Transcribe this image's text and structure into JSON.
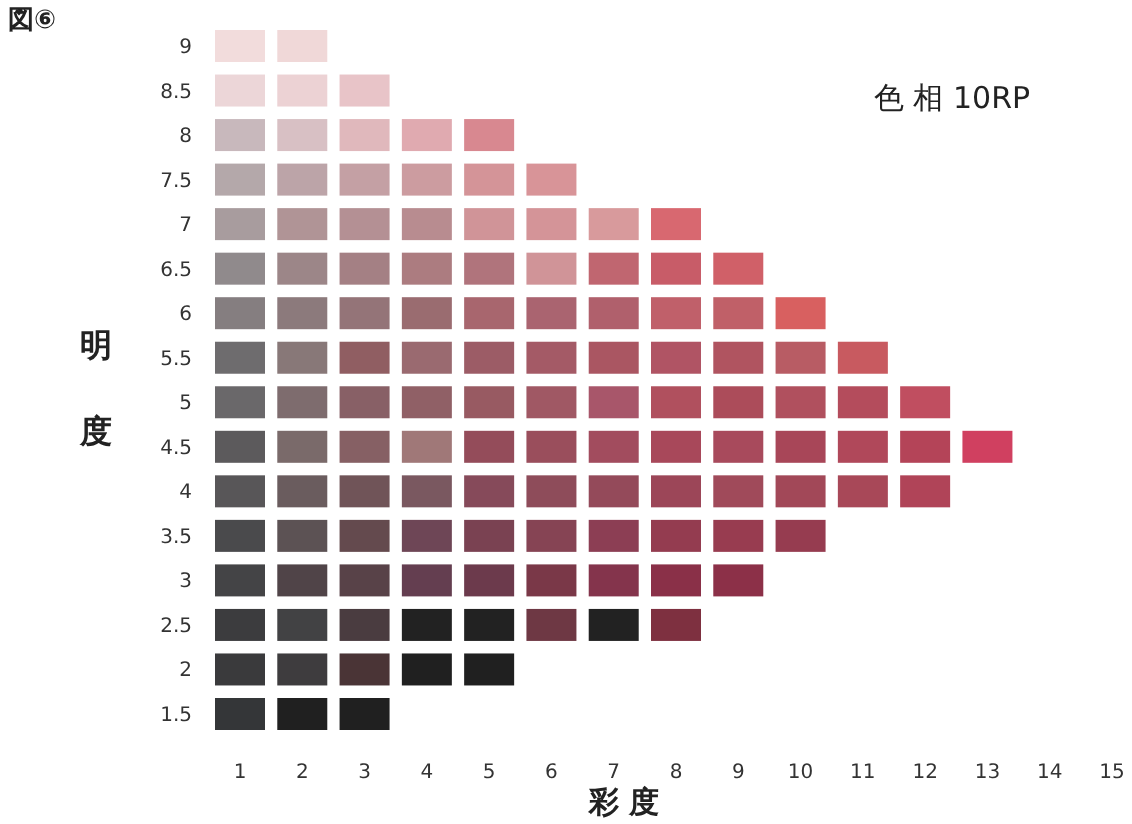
{
  "chart_data": {
    "type": "scatter",
    "title": "図⑥",
    "xlabel": "彩 度",
    "ylabel": "明度",
    "annotations": [
      "色 相 10RP"
    ],
    "marker": "square",
    "grid": false,
    "xlim": [
      1,
      15
    ],
    "ylim": [
      1.5,
      9
    ],
    "xticks": [
      1,
      2,
      3,
      4,
      5,
      6,
      7,
      8,
      9,
      10,
      11,
      12,
      13,
      14,
      15
    ],
    "yticks": [
      1.5,
      2,
      2.5,
      3,
      3.5,
      4,
      4.5,
      5,
      5.5,
      6,
      6.5,
      7,
      7.5,
      8,
      8.5,
      9
    ],
    "x": [
      1,
      2,
      1,
      2,
      3,
      1,
      2,
      3,
      4,
      5,
      1,
      2,
      3,
      4,
      5,
      6,
      1,
      2,
      3,
      4,
      5,
      6,
      7,
      8,
      1,
      2,
      3,
      4,
      5,
      6,
      7,
      8,
      9,
      1,
      2,
      3,
      4,
      5,
      6,
      7,
      8,
      9,
      10,
      1,
      2,
      3,
      4,
      5,
      6,
      7,
      8,
      9,
      10,
      11,
      1,
      2,
      3,
      4,
      5,
      6,
      7,
      8,
      9,
      10,
      11,
      12,
      1,
      2,
      3,
      4,
      5,
      6,
      7,
      8,
      9,
      10,
      11,
      12,
      13,
      1,
      2,
      3,
      4,
      5,
      6,
      7,
      8,
      9,
      10,
      11,
      12,
      1,
      2,
      3,
      4,
      5,
      6,
      7,
      8,
      9,
      10,
      1,
      2,
      3,
      4,
      5,
      6,
      7,
      8,
      9,
      1,
      2,
      3,
      4,
      5,
      6,
      7,
      8,
      1,
      2,
      3,
      4,
      5,
      1,
      2,
      3
    ],
    "values": [
      9,
      9,
      8.5,
      8.5,
      8.5,
      8,
      8,
      8,
      8,
      8,
      7.5,
      7.5,
      7.5,
      7.5,
      7.5,
      7.5,
      7,
      7,
      7,
      7,
      7,
      7,
      7,
      7,
      6.5,
      6.5,
      6.5,
      6.5,
      6.5,
      6.5,
      6.5,
      6.5,
      6.5,
      6,
      6,
      6,
      6,
      6,
      6,
      6,
      6,
      6,
      6,
      5.5,
      5.5,
      5.5,
      5.5,
      5.5,
      5.5,
      5.5,
      5.5,
      5.5,
      5.5,
      5.5,
      5,
      5,
      5,
      5,
      5,
      5,
      5,
      5,
      5,
      5,
      5,
      5,
      4.5,
      4.5,
      4.5,
      4.5,
      4.5,
      4.5,
      4.5,
      4.5,
      4.5,
      4.5,
      4.5,
      4.5,
      4.5,
      4,
      4,
      4,
      4,
      4,
      4,
      4,
      4,
      4,
      4,
      4,
      4,
      3.5,
      3.5,
      3.5,
      3.5,
      3.5,
      3.5,
      3.5,
      3.5,
      3.5,
      3.5,
      3,
      3,
      3,
      3,
      3,
      3,
      3,
      3,
      3,
      2.5,
      2.5,
      2.5,
      2.5,
      2.5,
      2.5,
      2.5,
      2.5,
      2,
      2,
      2,
      2,
      2,
      1.5,
      1.5,
      1.5
    ],
    "colors": [
      "#f2dcdc",
      "#f0d8d8",
      "#ecd6d8",
      "#ecd2d4",
      "#e8c4c8",
      "#c8b8bc",
      "#d8c0c4",
      "#e0b8bc",
      "#e0aab0",
      "#d88890",
      "#b4a8aa",
      "#bca4a8",
      "#c4a0a4",
      "#cc9ca0",
      "#d49498",
      "#d89498",
      "#a89c9e",
      "#b09496",
      "#b49094",
      "#b88c90",
      "#d09498",
      "#d49498",
      "#d89a9c",
      "#d86870",
      "#908a8c",
      "#9c8688",
      "#a48084",
      "#ac7c80",
      "#b0747c",
      "#d09498",
      "#c06670",
      "#c85c68",
      "#d06068",
      "#857e80",
      "#8c7a7c",
      "#947478",
      "#9a6c70",
      "#a8666e",
      "#aa6470",
      "#b0606c",
      "#c0606a",
      "#c06068",
      "#d86060",
      "#6e6c6e",
      "#887878",
      "#905e62",
      "#9a6a70",
      "#9c5c66",
      "#a45a66",
      "#aa5662",
      "#b05464",
      "#b05460",
      "#b85c64",
      "#c85a60",
      "#6a686a",
      "#7e6c6e",
      "#886066",
      "#906066",
      "#985a62",
      "#a05864",
      "#a8566a",
      "#b0505e",
      "#ac4c5a",
      "#b0505e",
      "#b44c5c",
      "#c04e60",
      "#5c5a5c",
      "#7a6a6a",
      "#866064",
      "#a07878",
      "#944c5a",
      "#9a4e5c",
      "#a24c5e",
      "#a8485a",
      "#a84a5c",
      "#a84658",
      "#b0485a",
      "#b44458",
      "#d04060",
      "#585658",
      "#6a5c5e",
      "#705458",
      "#7a5860",
      "#864a5a",
      "#8e4c5a",
      "#944a5a",
      "#9c4658",
      "#a04a5a",
      "#a24858",
      "#a84858",
      "#b04458",
      "#4a4a4c",
      "#5c5254",
      "#644a4e",
      "#6e4656",
      "#7a4252",
      "#864454",
      "#8c3e54",
      "#943c50",
      "#983c50",
      "#963c50",
      "#444446",
      "#504448",
      "#584248",
      "#643e50",
      "#6c3a4c",
      "#7a3848",
      "#84344c",
      "#8a3048",
      "#8c3048",
      "#3c3c3e",
      "#424244",
      "#4a3c40",
      "#222222",
      "#222222",
      "#6e3844",
      "#222222",
      "#7e3040",
      "#3a3a3c",
      "#3e3c3e",
      "#4a3436",
      "#202020",
      "#202020",
      "#343638",
      "#202020",
      "#202020"
    ]
  }
}
